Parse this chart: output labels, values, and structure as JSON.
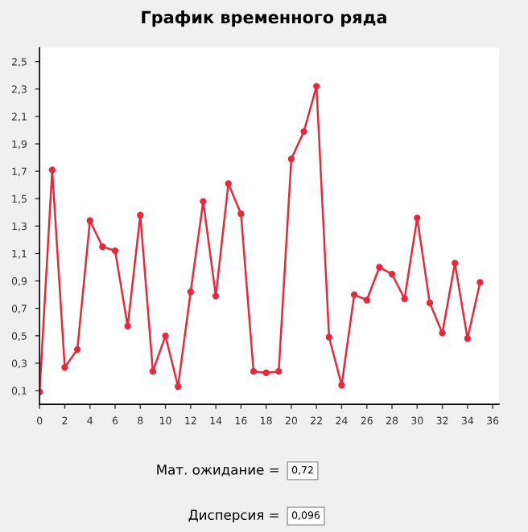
{
  "chart_data": {
    "type": "line",
    "title": "График временного ряда",
    "x": [
      0,
      1,
      2,
      3,
      4,
      5,
      6,
      7,
      8,
      9,
      10,
      11,
      12,
      13,
      14,
      15,
      16,
      17,
      18,
      19,
      20,
      21,
      22,
      23,
      24,
      25,
      26,
      27,
      28,
      29,
      30,
      31,
      32,
      33,
      34,
      35
    ],
    "series": [
      {
        "color": "#e8283c",
        "values": [
          0.09,
          1.71,
          0.27,
          0.4,
          1.34,
          1.15,
          1.12,
          0.57,
          1.38,
          0.24,
          0.5,
          0.13,
          0.82,
          1.48,
          0.79,
          1.61,
          1.39,
          0.24,
          0.23,
          0.24,
          1.79,
          1.99,
          2.32,
          0.49,
          0.14,
          0.8,
          0.76,
          1.0,
          0.95,
          0.77,
          1.36,
          0.74,
          0.52,
          1.03,
          0.48,
          0.89
        ]
      }
    ],
    "marker": "circle",
    "line_style": "solid",
    "grid": false,
    "legend": false,
    "xlim": [
      0,
      36.5
    ],
    "xticks": [
      0,
      2,
      4,
      6,
      8,
      10,
      12,
      14,
      16,
      18,
      20,
      22,
      24,
      26,
      28,
      30,
      32,
      34,
      36
    ],
    "ylim": [
      0,
      2.6
    ],
    "yticks": [
      {
        "value": 0.1,
        "label": "0,1"
      },
      {
        "value": 0.3,
        "label": "0,3"
      },
      {
        "value": 0.5,
        "label": "0,5"
      },
      {
        "value": 0.7,
        "label": "0,7"
      },
      {
        "value": 0.9,
        "label": "0,9"
      },
      {
        "value": 1.1,
        "label": "1,1"
      },
      {
        "value": 1.3,
        "label": "1,3"
      },
      {
        "value": 1.5,
        "label": "1,5"
      },
      {
        "value": 1.7,
        "label": "1,7"
      },
      {
        "value": 1.9,
        "label": "1,9"
      },
      {
        "value": 2.1,
        "label": "2,1"
      },
      {
        "value": 2.3,
        "label": "2,3"
      },
      {
        "value": 2.5,
        "label": "2,5"
      }
    ],
    "annotations": [
      "Мат. ожидание =",
      "0,72",
      "Дисперсия =",
      "0,096"
    ]
  }
}
